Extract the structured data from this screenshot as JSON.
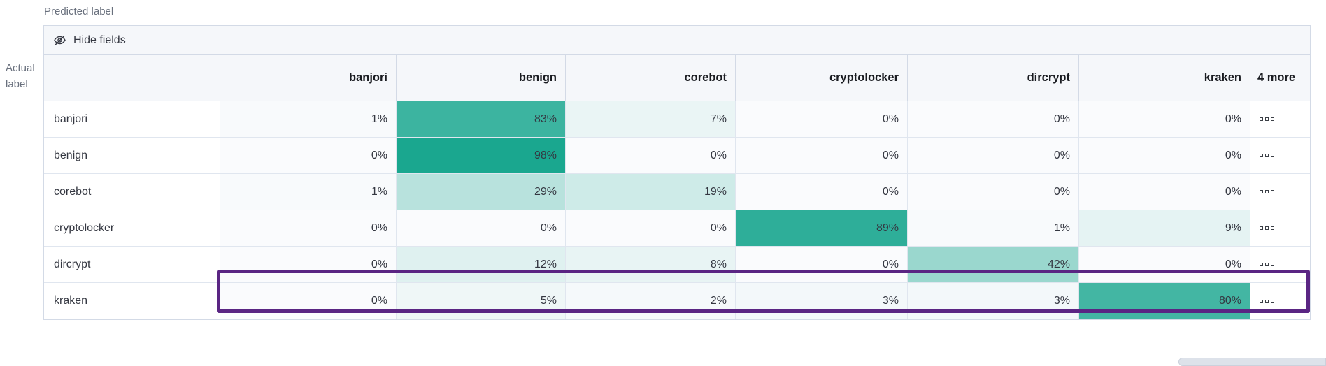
{
  "axis": {
    "predicted": "Predicted label",
    "actual_line1": "Actual",
    "actual_line2": "label"
  },
  "toolbar": {
    "hide_fields_label": "Hide fields"
  },
  "matrix": {
    "columns": [
      "banjori",
      "benign",
      "corebot",
      "cryptolocker",
      "dircrypt",
      "kraken"
    ],
    "more_header": "4 more",
    "rows": [
      {
        "label": "banjori",
        "values": [
          1,
          83,
          7,
          0,
          0,
          0
        ]
      },
      {
        "label": "benign",
        "values": [
          0,
          98,
          0,
          0,
          0,
          0
        ]
      },
      {
        "label": "corebot",
        "values": [
          1,
          29,
          19,
          0,
          0,
          0
        ]
      },
      {
        "label": "cryptolocker",
        "values": [
          0,
          0,
          0,
          89,
          1,
          9
        ]
      },
      {
        "label": "dircrypt",
        "values": [
          0,
          12,
          8,
          0,
          42,
          0
        ]
      },
      {
        "label": "kraken",
        "values": [
          0,
          5,
          2,
          3,
          3,
          80
        ]
      }
    ],
    "value_suffix": "%",
    "highlighted_row": "dircrypt"
  },
  "colors": {
    "heat_min": "#fafbfd",
    "heat_max": "#15a58d",
    "highlight_border": "#5a2583",
    "header_bg": "#f5f7fa",
    "panel_border": "#d3dae6",
    "muted_text": "#69707d"
  },
  "chart_data": {
    "type": "heatmap",
    "title": "Confusion matrix (normalized, %)",
    "xlabel": "Predicted label",
    "ylabel": "Actual label",
    "x_categories": [
      "banjori",
      "benign",
      "corebot",
      "cryptolocker",
      "dircrypt",
      "kraken"
    ],
    "y_categories": [
      "banjori",
      "benign",
      "corebot",
      "cryptolocker",
      "dircrypt",
      "kraken"
    ],
    "values": [
      [
        1,
        83,
        7,
        0,
        0,
        0
      ],
      [
        0,
        98,
        0,
        0,
        0,
        0
      ],
      [
        1,
        29,
        19,
        0,
        0,
        0
      ],
      [
        0,
        0,
        0,
        89,
        1,
        9
      ],
      [
        0,
        12,
        8,
        0,
        42,
        0
      ],
      [
        0,
        5,
        2,
        3,
        3,
        80
      ]
    ],
    "hidden_columns_note": "4 more",
    "annotation": "dircrypt row outlined in purple"
  }
}
